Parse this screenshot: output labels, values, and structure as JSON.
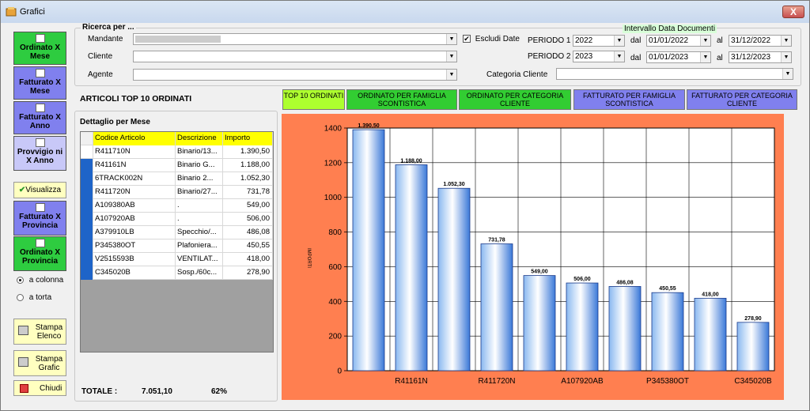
{
  "window": {
    "title": "Grafici",
    "close_label": "X"
  },
  "sidebar": {
    "buttons": [
      {
        "label": "Ordinato X Mese"
      },
      {
        "label": "Fatturato X Mese"
      },
      {
        "label": "Fatturato X Anno"
      },
      {
        "label": "Provvigio ni X Anno"
      }
    ],
    "visualizza_label": "Visualizza",
    "buttons2": [
      {
        "label": "Fatturato X Provincia"
      },
      {
        "label": "Ordinato X Provincia"
      }
    ],
    "radio_colonna": "a colonna",
    "radio_torta": "a torta",
    "stampa_elenco": "Stampa Elenco",
    "stampa_grafic": "Stampa Grafic",
    "chiudi": "Chiudi"
  },
  "search": {
    "group_title": "Ricerca per ...",
    "mandante_label": "Mandante",
    "cliente_label": "Cliente",
    "agente_label": "Agente",
    "escludi_label": "Escludi Date",
    "escludi_checked": true,
    "intervallo_title": "Intervallo Data Documenti",
    "periodo1_label": "PERIODO 1",
    "periodo2_label": "PERIODO 2",
    "periodo1_year": "2022",
    "periodo2_year": "2023",
    "dal_label": "dal",
    "al_label": "al",
    "p1_dal": "01/01/2022",
    "p1_al": "31/12/2022",
    "p2_dal": "01/01/2023",
    "p2_al": "31/12/2023",
    "categoria_label": "Categoria Cliente"
  },
  "main": {
    "section_title": "ARTICOLI TOP 10 ORDINATI",
    "dettaglio_label": "Dettaglio per Mese",
    "tabs": [
      {
        "label": "TOP 10 ORDINATI",
        "color": "#adff2f"
      },
      {
        "label": "ORDINATO PER FAMIGLIA SCONTISTICA",
        "color": "#32cd32"
      },
      {
        "label": "ORDINATO PER CATEGORIA CLIENTE",
        "color": "#32cd32"
      },
      {
        "label": "FATTURATO PER FAMIGLIA SCONTISTICA",
        "color": "#8080ee"
      },
      {
        "label": "FATTURATO PER CATEGORIA CLIENTE",
        "color": "#8080ee"
      }
    ],
    "table": {
      "headers": [
        "Codice Articolo",
        "Descrizione",
        "Importo"
      ],
      "rows": [
        [
          "R411710N",
          "Binario/13...",
          "1.390,50"
        ],
        [
          "R41161N",
          "Binario G...",
          "1.188,00"
        ],
        [
          "6TRACK002N",
          "Binario 2...",
          "1.052,30"
        ],
        [
          "R411720N",
          "Binario/27...",
          "731,78"
        ],
        [
          "A109380AB",
          ".",
          "549,00"
        ],
        [
          "A107920AB",
          ".",
          "506,00"
        ],
        [
          "A379910LB",
          "Specchio/...",
          "486,08"
        ],
        [
          "P345380OT",
          "Plafoniera...",
          "450,55"
        ],
        [
          "V2515593B",
          "VENTILAT...",
          "418,00"
        ],
        [
          "C345020B",
          "Sosp./60c...",
          "278,90"
        ]
      ]
    },
    "totale_label": "TOTALE :",
    "totale_value": "7.051,10",
    "totale_pct": "62%"
  },
  "chart_data": {
    "type": "bar",
    "ylabel": "IMPORTI",
    "ylim": [
      0,
      1400
    ],
    "yticks": [
      0,
      200,
      400,
      600,
      800,
      1000,
      1200,
      1400
    ],
    "categories": [
      "R411710N",
      "R41161N",
      "6TRACK002N",
      "R411720N",
      "A109380AB",
      "A107920AB",
      "A379910LB",
      "P345380OT",
      "V2515593B",
      "C345020B"
    ],
    "shown_x_labels": [
      "",
      "R41161N",
      "",
      "R411720N",
      "",
      "A107920AB",
      "",
      "P345380OT",
      "",
      "C345020B"
    ],
    "values": [
      1390.5,
      1188.0,
      1052.3,
      731.78,
      549.0,
      506.0,
      486.08,
      450.55,
      418.0,
      278.9
    ],
    "data_labels": [
      "1.390,50",
      "1.188,00",
      "1.052,30",
      "731,78",
      "549,00",
      "506,00",
      "486,08",
      "450,55",
      "418,00",
      "278,90"
    ],
    "grid": true,
    "background": "#ff7f50"
  }
}
